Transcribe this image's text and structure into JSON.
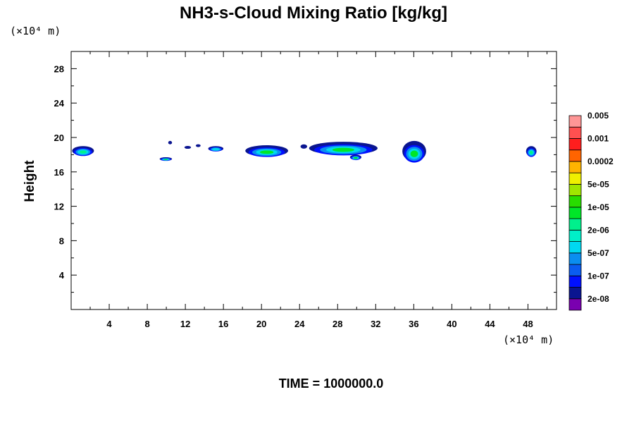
{
  "chart_data": {
    "type": "heatmap",
    "title": "NH3-s-Cloud Mixing Ratio [kg/kg]",
    "ylabel": "Height",
    "x_unit_label": "(×10⁴ m)",
    "y_unit_label": "(×10⁴ m)",
    "time_label": "TIME = 1000000.0",
    "xlim": [
      0,
      51
    ],
    "ylim": [
      0,
      30
    ],
    "x_ticks": [
      4,
      8,
      12,
      16,
      20,
      24,
      28,
      32,
      36,
      40,
      44,
      48
    ],
    "y_ticks": [
      4,
      8,
      12,
      16,
      20,
      24,
      28
    ],
    "colorbar": {
      "colors": [
        "#7a00b0",
        "#0a1590",
        "#0010ff",
        "#0a5cf0",
        "#0a8ef0",
        "#00d8f0",
        "#00f0c8",
        "#00f08c",
        "#00e628",
        "#28dc00",
        "#a0e600",
        "#f0f000",
        "#ffb400",
        "#ff6400",
        "#ff1e1e",
        "#ff5050",
        "#ff9696"
      ],
      "labels": [
        "2e-08",
        "1e-07",
        "5e-07",
        "2e-06",
        "1e-05",
        "5e-05",
        "0.0002",
        "0.001",
        "0.005"
      ]
    },
    "cloud_patches": [
      {
        "x0": 0.1,
        "x1": 2.4,
        "y0": 17.9,
        "y1": 19.0,
        "core_color": "#00f08c"
      },
      {
        "x0": 9.3,
        "x1": 10.6,
        "y0": 17.3,
        "y1": 17.7,
        "core_color": "#00e628"
      },
      {
        "x0": 10.2,
        "x1": 10.6,
        "y0": 19.2,
        "y1": 19.6,
        "core_color": "#0a1590"
      },
      {
        "x0": 11.9,
        "x1": 12.6,
        "y0": 18.7,
        "y1": 19.0,
        "core_color": "#0a1590"
      },
      {
        "x0": 13.1,
        "x1": 13.6,
        "y0": 18.9,
        "y1": 19.2,
        "core_color": "#0a1590"
      },
      {
        "x0": 14.4,
        "x1": 16.0,
        "y0": 18.4,
        "y1": 19.0,
        "core_color": "#00d8f0"
      },
      {
        "x0": 18.3,
        "x1": 22.8,
        "y0": 17.8,
        "y1": 19.1,
        "core_color": "#00e628"
      },
      {
        "x0": 24.1,
        "x1": 24.8,
        "y0": 18.7,
        "y1": 19.2,
        "core_color": "#0a1590"
      },
      {
        "x0": 25.0,
        "x1": 32.2,
        "y0": 18.0,
        "y1": 19.5,
        "core_color": "#00e628"
      },
      {
        "x0": 29.3,
        "x1": 30.5,
        "y0": 17.4,
        "y1": 18.0,
        "core_color": "#00e628"
      },
      {
        "x0": 34.8,
        "x1": 37.3,
        "y0": 17.2,
        "y1": 19.6,
        "core_color": "#00e628"
      },
      {
        "x0": 47.8,
        "x1": 48.9,
        "y0": 17.8,
        "y1": 19.0,
        "core_color": "#00f08c"
      }
    ]
  }
}
